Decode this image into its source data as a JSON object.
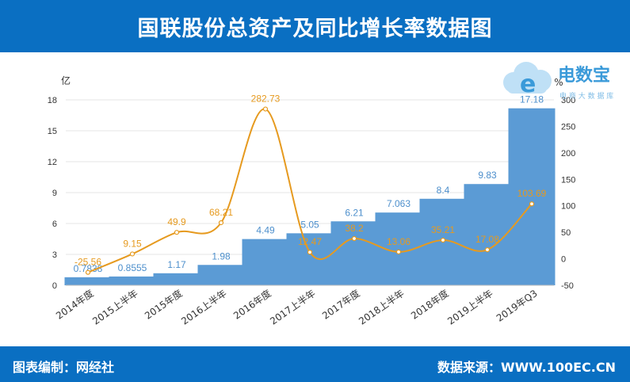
{
  "header": {
    "title": "国联股份总资产及同比增长率数据图"
  },
  "footer": {
    "left": "图表编制：网经社",
    "right": "数据来源：WWW.100EC.CN"
  },
  "logo": {
    "mark": "e",
    "brand": "电数宝",
    "sub": "电 商 大 数 据 库"
  },
  "colors": {
    "bar": "#5b9bd5",
    "line": "#e69a1f",
    "header": "#0a6fc2"
  },
  "chart_data": {
    "type": "bar",
    "categories": [
      "2014年度",
      "2015上半年",
      "2015年度",
      "2016上半年",
      "2016年度",
      "2017上半年",
      "2017年度",
      "2018上半年",
      "2018年度",
      "2019上半年",
      "2019年Q3"
    ],
    "series": [
      {
        "values": [
          0.7838,
          0.8555,
          1.17,
          1.98,
          4.49,
          5.05,
          6.21,
          7.063,
          8.4,
          9.83,
          17.18
        ],
        "labels": [
          "0.7838",
          "0.8555",
          "1.17",
          "1.98",
          "4.49",
          "5.05",
          "6.21",
          "7.063",
          "8.4",
          "9.83",
          "17.18"
        ]
      },
      {
        "type": "line",
        "axis": "right",
        "values": [
          -25.56,
          9.15,
          49.9,
          68.21,
          282.73,
          12.47,
          38.2,
          13.06,
          35.21,
          17.08,
          103.69
        ],
        "labels": [
          "-25.56",
          "9.15",
          "49.9",
          "68.21",
          "282.73",
          "12.47",
          "38.2",
          "13.06",
          "35.21",
          "17.08",
          "103.69"
        ]
      }
    ],
    "ylabel": "亿",
    "y2label": "%",
    "ylim": [
      0,
      18
    ],
    "yticks": [
      "0",
      "3",
      "6",
      "9",
      "12",
      "15",
      "18"
    ],
    "y2lim": [
      -50,
      300
    ],
    "y2ticks": [
      "-50",
      "0",
      "50",
      "100",
      "150",
      "200",
      "250",
      "300"
    ],
    "grid": true
  }
}
